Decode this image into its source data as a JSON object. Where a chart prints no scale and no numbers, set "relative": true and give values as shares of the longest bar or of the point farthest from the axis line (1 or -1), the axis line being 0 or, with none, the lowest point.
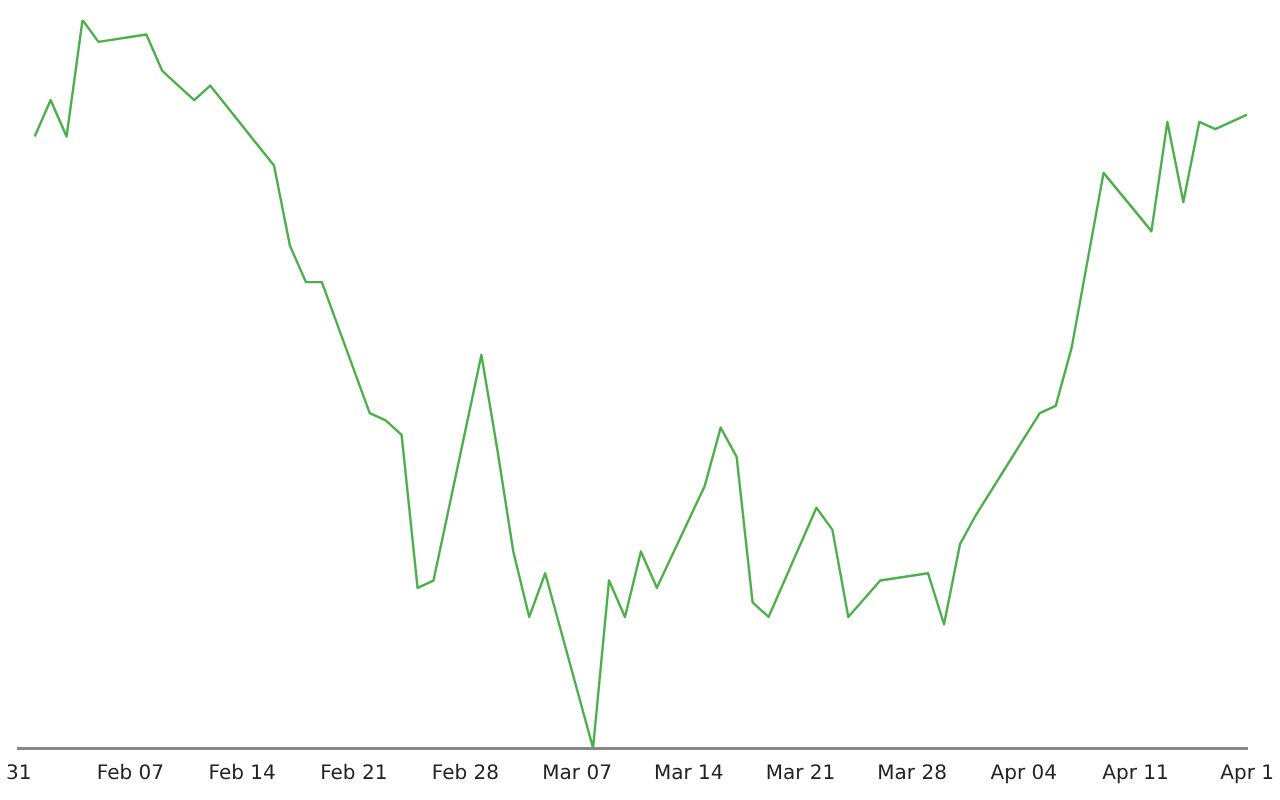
{
  "chart_data": {
    "type": "line",
    "relative": true,
    "grid": false,
    "marker": "none",
    "line_style": "solid",
    "x": [
      "--02-01",
      "--02-02",
      "--02-03",
      "--02-04",
      "--02-05",
      "--02-08",
      "--02-09",
      "--02-10",
      "--02-11",
      "--02-12",
      "--02-16",
      "--02-17",
      "--02-18",
      "--02-19",
      "--02-22",
      "--02-23",
      "--02-24",
      "--02-25",
      "--02-26",
      "--03-01",
      "--03-02",
      "--03-03",
      "--03-04",
      "--03-05",
      "--03-08",
      "--03-09",
      "--03-10",
      "--03-11",
      "--03-12",
      "--03-15",
      "--03-16",
      "--03-17",
      "--03-18",
      "--03-19",
      "--03-22",
      "--03-23",
      "--03-24",
      "--03-26",
      "--03-29",
      "--03-30",
      "--03-31",
      "--04-01",
      "--04-05",
      "--04-06",
      "--04-07",
      "--04-09",
      "--04-12",
      "--04-13",
      "--04-14",
      "--04-15",
      "--04-16",
      "--04-18"
    ],
    "series": [
      {
        "color": "#4daf4a",
        "values": [
          0.84,
          0.89,
          0.84,
          1,
          0.97,
          0.98,
          0.93,
          0.91,
          0.89,
          0.91,
          0.8,
          0.69,
          0.64,
          0.64,
          0.46,
          0.45,
          0.43,
          0.22,
          0.23,
          0.54,
          0.41,
          0.27,
          0.18,
          0.24,
          0,
          0.23,
          0.18,
          0.27,
          0.22,
          0.36,
          0.44,
          0.4,
          0.2,
          0.18,
          0.33,
          0.3,
          0.18,
          0.23,
          0.24,
          0.17,
          0.28,
          0.32,
          0.46,
          0.47,
          0.55,
          0.79,
          0.71,
          0.86,
          0.75,
          0.86,
          0.85,
          0.87
        ]
      }
    ],
    "xlim": [
      "--01-31",
      "--04-18"
    ],
    "xticks": [
      {
        "value": "--01-31",
        "label": "31"
      },
      {
        "value": "--02-07",
        "label": "Feb 07"
      },
      {
        "value": "--02-14",
        "label": "Feb 14"
      },
      {
        "value": "--02-21",
        "label": "Feb 21"
      },
      {
        "value": "--02-28",
        "label": "Feb 28"
      },
      {
        "value": "--03-07",
        "label": "Mar 07"
      },
      {
        "value": "--03-14",
        "label": "Mar 14"
      },
      {
        "value": "--03-21",
        "label": "Mar 21"
      },
      {
        "value": "--03-28",
        "label": "Mar 28"
      },
      {
        "value": "--04-04",
        "label": "Apr 04"
      },
      {
        "value": "--04-11",
        "label": "Apr 11"
      },
      {
        "value": "--04-18",
        "label": "Apr 1"
      }
    ]
  }
}
